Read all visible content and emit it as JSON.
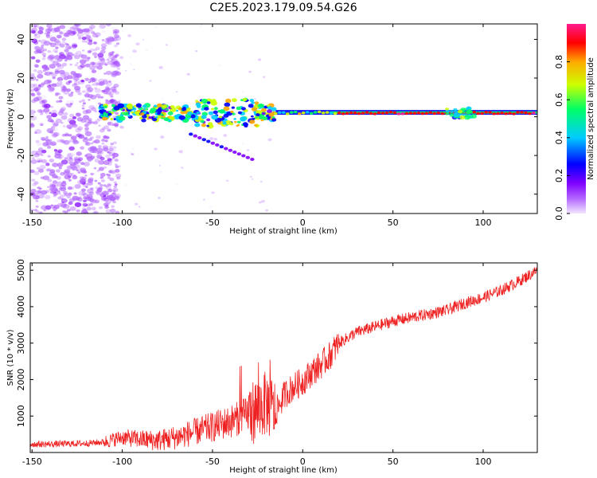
{
  "title": "C2E5.2023.179.09.54.G26",
  "chart_data": [
    {
      "type": "heatmap",
      "xlabel": "Height of straight line (km)",
      "ylabel": "Frequency (Hz)",
      "xlim": [
        -151,
        130
      ],
      "ylim": [
        -50,
        48
      ],
      "x_ticks": [
        "-150",
        "-100",
        "-50",
        "0",
        "50",
        "100"
      ],
      "y_ticks": [
        "-40",
        "-20",
        "0",
        "20",
        "40"
      ],
      "colorbar": {
        "label": "Normalized spectral amplitude",
        "range": [
          0,
          1
        ],
        "ticks": [
          "0.0",
          "0.2",
          "0.4",
          "0.6",
          "0.8"
        ],
        "colors": [
          "#f2e6ff",
          "#b266ff",
          "#7f00ff",
          "#0000ff",
          "#00ccff",
          "#00ff66",
          "#ccff00",
          "#ffaa00",
          "#ff0000",
          "#ff1a8c"
        ]
      },
      "features": {
        "carrier_frequency_hz": 2,
        "noise_region_km": [
          -150,
          -110
        ],
        "scattered_region_km": [
          -110,
          -15
        ],
        "steady_region_km": [
          -15,
          130
        ],
        "bright_patch_km": [
          78,
          95
        ],
        "descending_trace": {
          "height_km": [
            -62,
            -28
          ],
          "frequency_hz": [
            -9,
            -22
          ]
        }
      }
    },
    {
      "type": "line",
      "xlabel": "Height of straight line (km)",
      "ylabel": "SNR (10 * v/v)",
      "xlim": [
        -151,
        130
      ],
      "ylim": [
        0,
        5200
      ],
      "x_ticks": [
        "-150",
        "-100",
        "-50",
        "0",
        "50",
        "100"
      ],
      "y_ticks": [
        "1000",
        "2000",
        "3000",
        "4000",
        "5000"
      ],
      "series": [
        {
          "color": "#ee2222",
          "x": [
            -151,
            -140,
            -130,
            -120,
            -110,
            -100,
            -90,
            -80,
            -70,
            -60,
            -50,
            -40,
            -30,
            -25,
            -20,
            -15,
            -10,
            -5,
            0,
            5,
            10,
            15,
            20,
            25,
            30,
            40,
            50,
            60,
            70,
            80,
            90,
            100,
            110,
            120,
            130
          ],
          "y": [
            230,
            230,
            240,
            250,
            290,
            420,
            360,
            330,
            420,
            560,
            700,
            850,
            1050,
            1200,
            1350,
            1100,
            1600,
            1800,
            1950,
            2200,
            2400,
            2650,
            3000,
            3150,
            3300,
            3450,
            3600,
            3700,
            3800,
            3900,
            4100,
            4250,
            4450,
            4700,
            5000
          ]
        }
      ]
    }
  ]
}
